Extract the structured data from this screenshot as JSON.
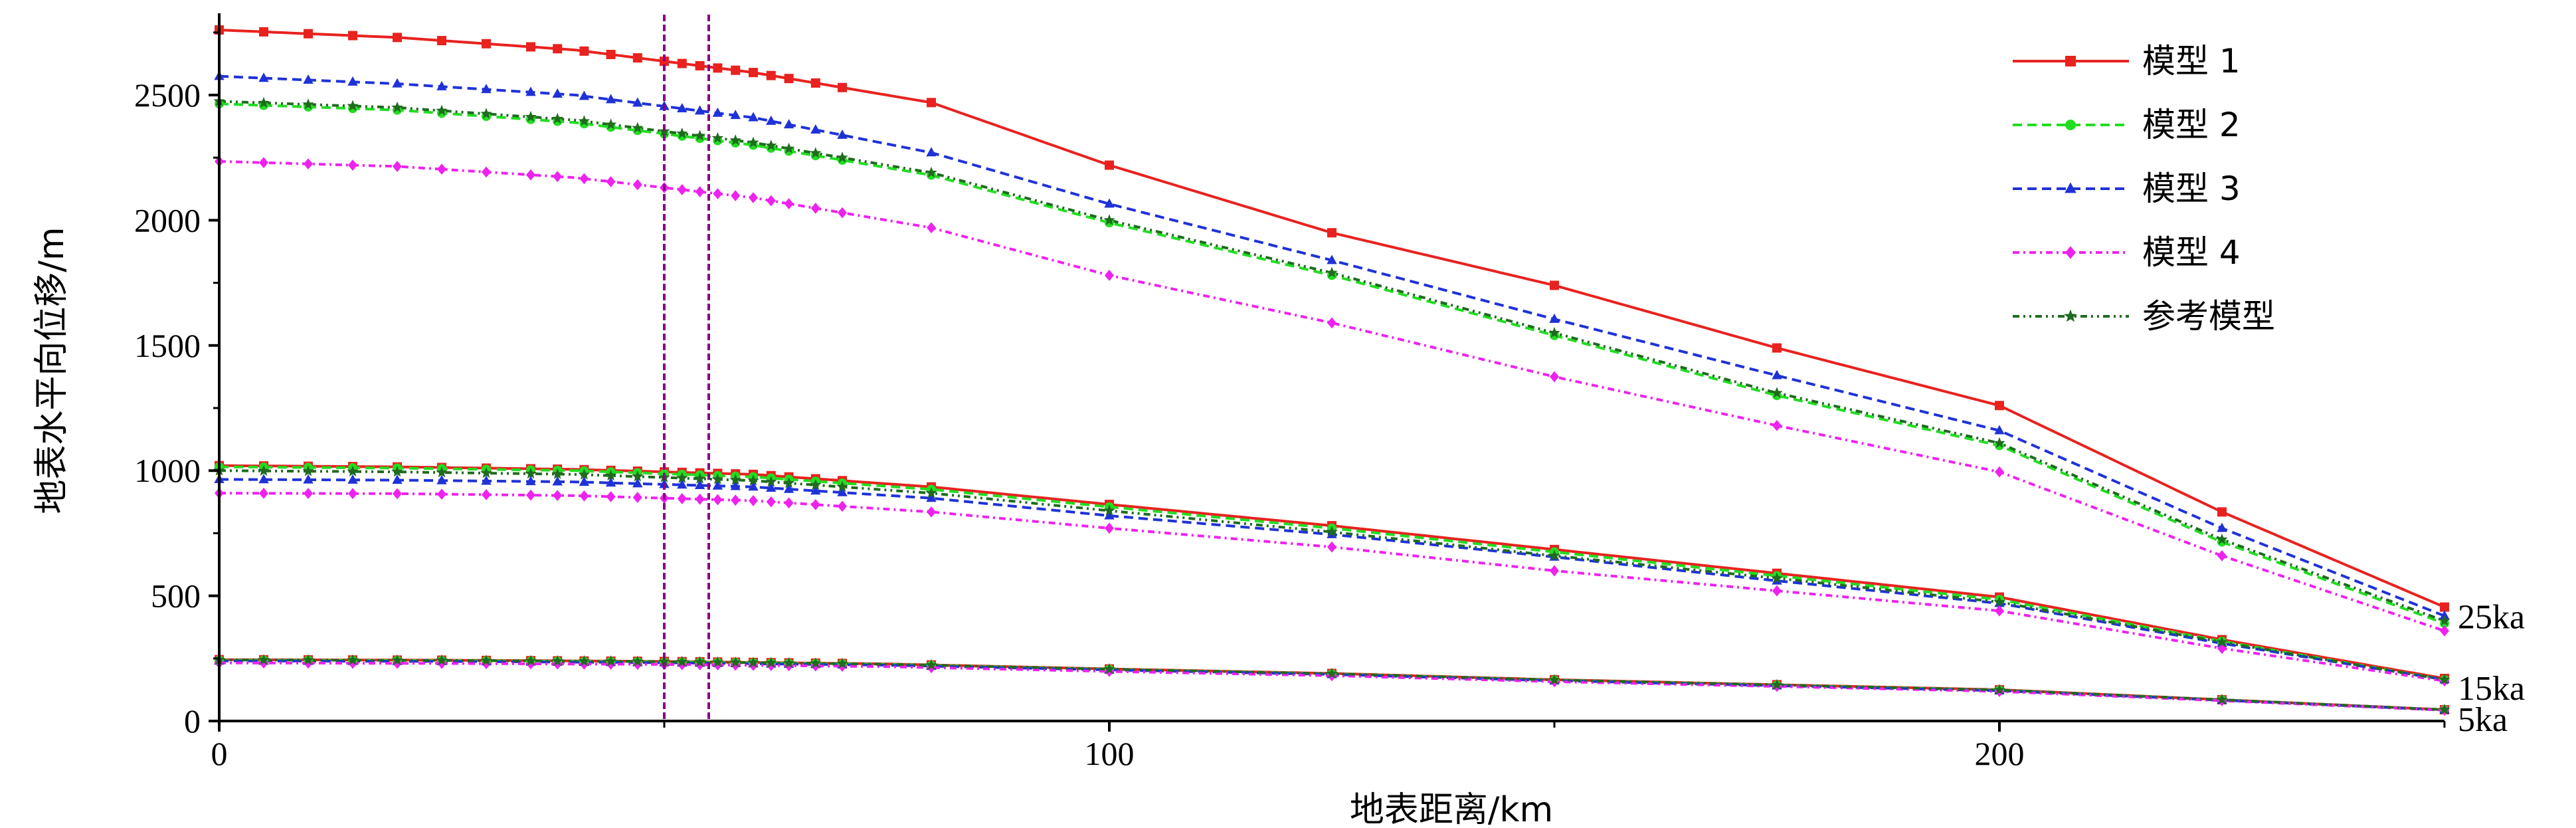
{
  "chart_data": {
    "type": "line",
    "xlabel": "地表距离/km",
    "ylabel": "地表水平向位移/m",
    "xlim": [
      0,
      250
    ],
    "ylim": [
      0,
      2800
    ],
    "x_ticks": [
      0,
      100,
      200
    ],
    "x_minor_ticks": [
      50,
      150,
      250
    ],
    "y_ticks": [
      0,
      500,
      1000,
      1500,
      2000,
      2500
    ],
    "legend_position": "top-right",
    "grid": false,
    "vertical_markers": [
      50,
      55
    ],
    "annotations": [
      "25ka",
      "15ka",
      "5ka"
    ],
    "series_styles": [
      {
        "name": "模型 1",
        "color": "#e8221f",
        "dash": "",
        "marker": "square"
      },
      {
        "name": "模型 2",
        "color": "#22dd22",
        "dash": "14,8",
        "marker": "circle"
      },
      {
        "name": "模型 3",
        "color": "#1f32d8",
        "dash": "14,8",
        "marker": "triangle"
      },
      {
        "name": "模型 4",
        "color": "#ee22ee",
        "dash": "10,6,3,6",
        "marker": "diamond"
      },
      {
        "name": "参考模型",
        "color": "#1f6b1f",
        "dash": "10,6,3,6,3,6",
        "marker": "star"
      }
    ],
    "groups": [
      {
        "label": "25ka",
        "series": [
          {
            "name": "模型 1",
            "x": [
              0,
              20,
              40,
              60,
              80,
              100,
              125,
              150,
              175,
              200,
              225,
              250
            ],
            "y": [
              2760,
              2730,
              2680,
              2590,
              2470,
              2220,
              1950,
              1740,
              1490,
              1260,
              835,
              455
            ]
          },
          {
            "name": "模型 2",
            "x": [
              0,
              20,
              40,
              60,
              80,
              100,
              125,
              150,
              175,
              200,
              225,
              250
            ],
            "y": [
              2465,
              2440,
              2390,
              2300,
              2180,
              1990,
              1780,
              1540,
              1300,
              1100,
              715,
              390
            ]
          },
          {
            "name": "模型 3",
            "x": [
              0,
              20,
              40,
              60,
              80,
              100,
              125,
              150,
              175,
              200,
              225,
              250
            ],
            "y": [
              2575,
              2545,
              2500,
              2410,
              2270,
              2065,
              1840,
              1605,
              1380,
              1160,
              770,
              420
            ]
          },
          {
            "name": "模型 4",
            "x": [
              0,
              20,
              40,
              60,
              80,
              100,
              125,
              150,
              175,
              200,
              225,
              250
            ],
            "y": [
              2235,
              2215,
              2170,
              2090,
              1970,
              1780,
              1590,
              1375,
              1180,
              995,
              660,
              360
            ]
          },
          {
            "name": "参考模型",
            "x": [
              0,
              20,
              40,
              60,
              80,
              100,
              125,
              150,
              175,
              200,
              225,
              250
            ],
            "y": [
              2475,
              2450,
              2400,
              2310,
              2190,
              2000,
              1790,
              1550,
              1310,
              1110,
              725,
              400
            ]
          }
        ]
      },
      {
        "label": "15ka",
        "series": [
          {
            "name": "模型 1",
            "x": [
              0,
              20,
              40,
              60,
              80,
              100,
              125,
              150,
              175,
              200,
              225,
              250
            ],
            "y": [
              1020,
              1015,
              1005,
              985,
              935,
              865,
              780,
              685,
              590,
              495,
              325,
              170
            ]
          },
          {
            "name": "模型 2",
            "x": [
              0,
              20,
              40,
              60,
              80,
              100,
              125,
              150,
              175,
              200,
              225,
              250
            ],
            "y": [
              1015,
              1010,
              1000,
              975,
              925,
              855,
              770,
              675,
              580,
              485,
              318,
              165
            ]
          },
          {
            "name": "模型 3",
            "x": [
              0,
              20,
              40,
              60,
              80,
              100,
              125,
              150,
              175,
              200,
              225,
              250
            ],
            "y": [
              965,
              962,
              955,
              935,
              890,
              820,
              745,
              655,
              560,
              470,
              310,
              165
            ]
          },
          {
            "name": "模型 4",
            "x": [
              0,
              20,
              40,
              60,
              80,
              100,
              125,
              150,
              175,
              200,
              225,
              250
            ],
            "y": [
              910,
              908,
              900,
              880,
              835,
              770,
              695,
              600,
              520,
              440,
              290,
              160
            ]
          },
          {
            "name": "参考模型",
            "x": [
              0,
              20,
              40,
              60,
              80,
              100,
              125,
              150,
              175,
              200,
              225,
              250
            ],
            "y": [
              1000,
              995,
              985,
              960,
              910,
              840,
              755,
              660,
              570,
              475,
              315,
              165
            ]
          }
        ]
      },
      {
        "label": "5ka",
        "series": [
          {
            "name": "模型 1",
            "x": [
              0,
              25,
              50,
              75,
              100,
              125,
              150,
              175,
              200,
              225,
              250
            ],
            "y": [
              245,
              243,
              238,
              228,
              208,
              190,
              165,
              145,
              125,
              85,
              45
            ]
          },
          {
            "name": "模型 2",
            "x": [
              0,
              25,
              50,
              75,
              100,
              125,
              150,
              175,
              200,
              225,
              250
            ],
            "y": [
              243,
              241,
              236,
              226,
              206,
              188,
              163,
              143,
              123,
              84,
              44
            ]
          },
          {
            "name": "模型 3",
            "x": [
              0,
              25,
              50,
              75,
              100,
              125,
              150,
              175,
              200,
              225,
              250
            ],
            "y": [
              240,
              238,
              233,
              223,
              204,
              186,
              161,
              141,
              121,
              83,
              44
            ]
          },
          {
            "name": "模型 4",
            "x": [
              0,
              25,
              50,
              75,
              100,
              125,
              150,
              175,
              200,
              225,
              250
            ],
            "y": [
              232,
              230,
              226,
              217,
              198,
              181,
              157,
              138,
              118,
              81,
              43
            ]
          },
          {
            "name": "参考模型",
            "x": [
              0,
              25,
              50,
              75,
              100,
              125,
              150,
              175,
              200,
              225,
              250
            ],
            "y": [
              244,
              242,
              237,
              227,
              207,
              189,
              164,
              144,
              124,
              85,
              45
            ]
          }
        ]
      }
    ]
  }
}
